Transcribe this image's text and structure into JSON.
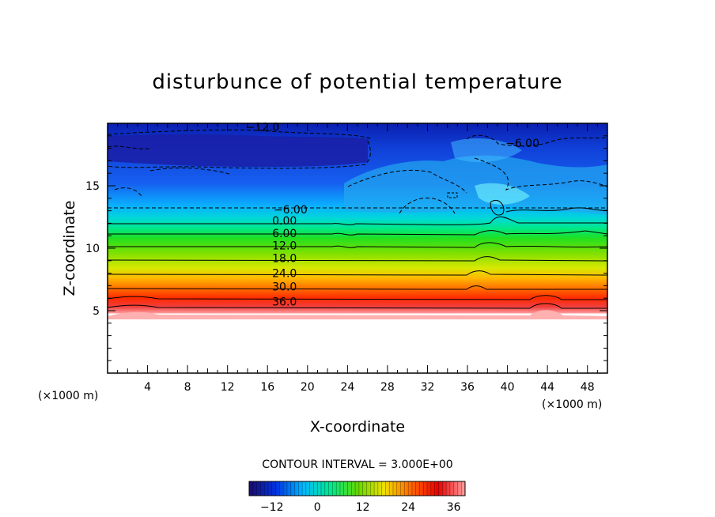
{
  "chart_data": {
    "type": "contour",
    "title": "disturbunce of potential temperature",
    "xlabel": "X-coordinate",
    "ylabel": "Z-coordinate",
    "x_unit": "(×1000 m)",
    "z_unit": "(×1000 m)",
    "xlim": [
      0,
      50
    ],
    "ylim": [
      0,
      20
    ],
    "x_ticks": [
      4,
      8,
      12,
      16,
      20,
      24,
      28,
      32,
      36,
      40,
      44,
      48
    ],
    "y_ticks": [
      5,
      10,
      15
    ],
    "contour_interval_text": "CONTOUR INTERVAL = 3.000E+00",
    "contour_interval": 3.0,
    "colorbar": {
      "range": [
        -18,
        39
      ],
      "tick_values": [
        -12,
        0,
        12,
        24,
        36
      ],
      "tick_labels": [
        "−12",
        "0",
        "12",
        "24",
        "36"
      ],
      "colors": [
        "#1a0a6e",
        "#0033e0",
        "#00b8ff",
        "#00e890",
        "#60d800",
        "#f0e000",
        "#ff6600",
        "#e80000",
        "#ffa0a0"
      ]
    },
    "contour_labels": [
      {
        "text": "−12.0",
        "x": 15.5,
        "z": 19.4
      },
      {
        "text": "−6.00",
        "x": 41.5,
        "z": 18.1
      },
      {
        "text": "−6.00",
        "x": 18.3,
        "z": 12.8
      },
      {
        "text": "0.00",
        "x": 17.7,
        "z": 11.9
      },
      {
        "text": "6.00",
        "x": 17.7,
        "z": 10.9
      },
      {
        "text": "12.0",
        "x": 17.7,
        "z": 9.9
      },
      {
        "text": "18.0",
        "x": 17.7,
        "z": 8.9
      },
      {
        "text": "24.0",
        "x": 17.7,
        "z": 7.7
      },
      {
        "text": "30.0",
        "x": 17.7,
        "z": 6.6
      },
      {
        "text": "36.0",
        "x": 17.7,
        "z": 5.4
      }
    ],
    "terrain_top_z": 4.7
  }
}
